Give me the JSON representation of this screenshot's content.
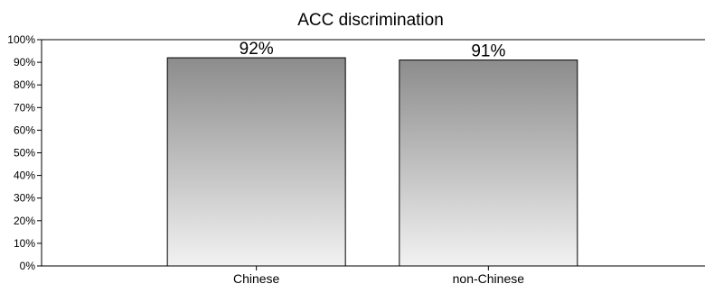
{
  "chart_data": {
    "type": "bar",
    "title": "ACC discrimination",
    "categories": [
      "Chinese",
      "non-Chinese"
    ],
    "values": [
      92,
      91
    ],
    "value_labels": [
      "92%",
      "91%"
    ],
    "ylim": [
      0,
      100
    ],
    "yticks": [
      0,
      10,
      20,
      30,
      40,
      50,
      60,
      70,
      80,
      90,
      100
    ],
    "ytick_labels": [
      "0%",
      "10%",
      "20%",
      "30%",
      "40%",
      "50%",
      "60%",
      "70%",
      "80%",
      "90%",
      "100%"
    ],
    "xlabel": "",
    "ylabel": "",
    "grid": false,
    "legend": "none",
    "bar_fill_top": "#8c8c8c",
    "bar_fill_bottom": "#f2f2f2",
    "bar_stroke": "#000000"
  }
}
